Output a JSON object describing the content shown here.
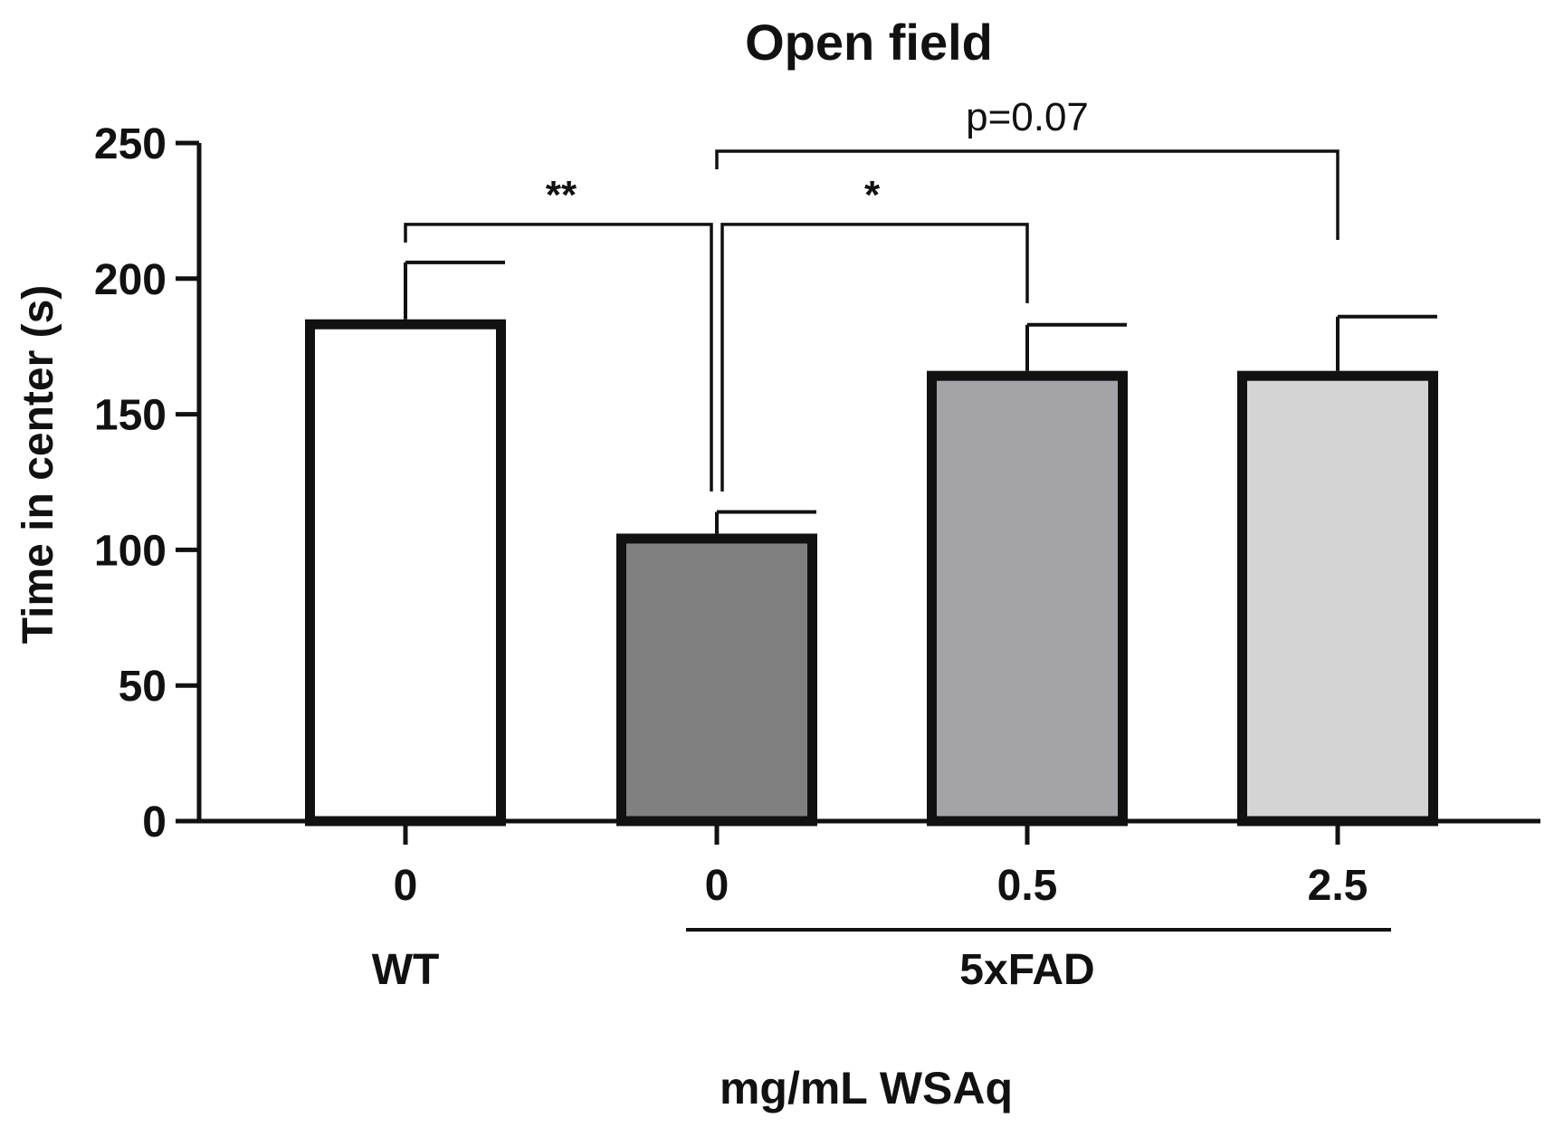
{
  "chart_data": {
    "type": "bar",
    "title": "Open field",
    "ylabel": "Time in center (s)",
    "xlabel": "mg/mL WSAq",
    "ylim": [
      0,
      250
    ],
    "yticks": [
      0,
      50,
      100,
      150,
      200,
      250
    ],
    "categories": [
      "0",
      "0",
      "0.5",
      "2.5"
    ],
    "groups": [
      {
        "label": "WT",
        "members": [
          0
        ],
        "underline": false
      },
      {
        "label": "5xFAD",
        "members": [
          1,
          2,
          3
        ],
        "underline": true
      }
    ],
    "series": [
      {
        "name": "Time in center",
        "values": [
          185,
          106,
          166,
          166
        ],
        "errors": [
          21,
          8,
          17,
          20
        ],
        "colors": [
          "#ffffff",
          "#808080",
          "#a4a4a8",
          "#d4d4d4"
        ]
      }
    ],
    "comparisons": [
      {
        "from": 0,
        "to": 1,
        "label": "**",
        "y": 220
      },
      {
        "from": 1,
        "to": 2,
        "label": "*",
        "y": 220
      },
      {
        "from": 1,
        "to": 3,
        "label": "p=0.07",
        "y": 247
      }
    ]
  }
}
